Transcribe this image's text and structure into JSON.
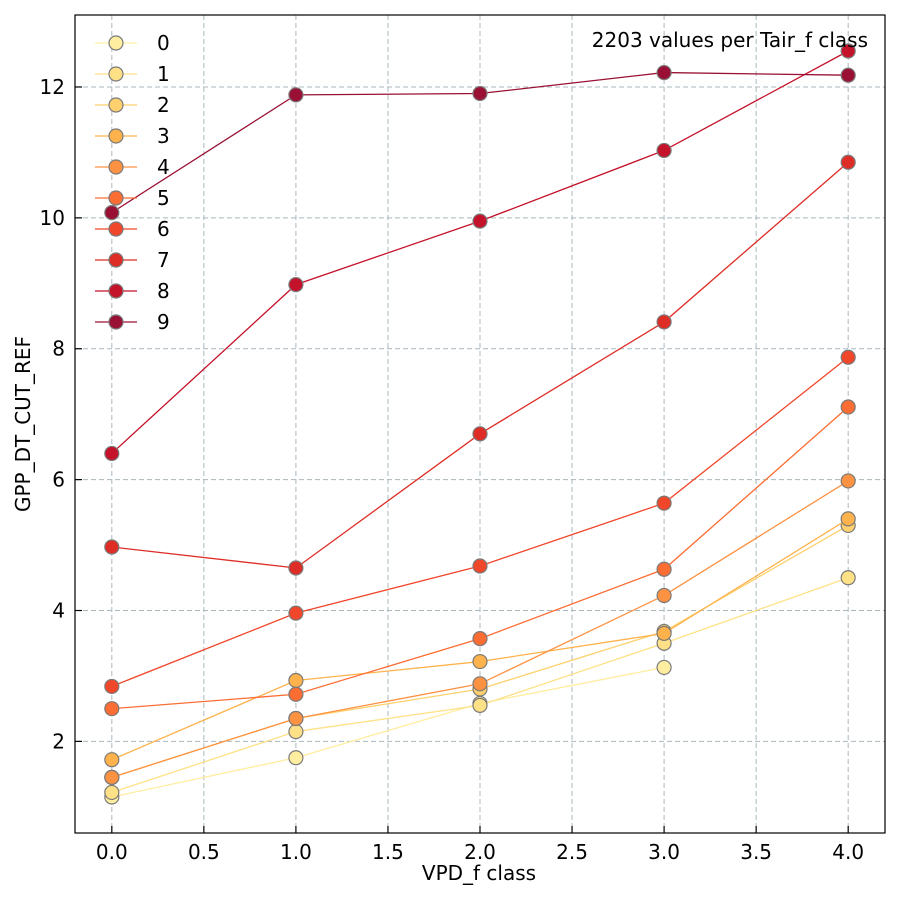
{
  "chart_data": {
    "type": "line",
    "annotation": "2203 values per Tair_f class",
    "xlabel": "VPD_f class",
    "ylabel": "GPP_DT_CUT_REF",
    "xlim": [
      -0.2,
      4.2
    ],
    "ylim": [
      0.6,
      13.1
    ],
    "x_ticks": [
      0.0,
      0.5,
      1.0,
      1.5,
      2.0,
      2.5,
      3.0,
      3.5,
      4.0
    ],
    "x_tick_labels": [
      "0.0",
      "0.5",
      "1.0",
      "1.5",
      "2.0",
      "2.5",
      "3.0",
      "3.5",
      "4.0"
    ],
    "y_ticks": [
      2,
      4,
      6,
      8,
      10,
      12
    ],
    "y_tick_labels": [
      "2",
      "4",
      "6",
      "8",
      "10",
      "12"
    ],
    "grid": true,
    "legend_position": "top-left",
    "x": [
      0,
      1,
      2,
      3,
      4
    ],
    "series": [
      {
        "name": "0",
        "color": "#ffeda0",
        "values": [
          1.15,
          1.75,
          2.58,
          3.13,
          null
        ]
      },
      {
        "name": "1",
        "color": "#fee187",
        "values": [
          1.22,
          2.15,
          2.55,
          3.5,
          4.5
        ]
      },
      {
        "name": "2",
        "color": "#fed16e",
        "values": [
          1.45,
          2.35,
          2.8,
          3.68,
          5.3
        ]
      },
      {
        "name": "3",
        "color": "#feb24c",
        "values": [
          1.72,
          2.93,
          3.22,
          3.65,
          5.4
        ]
      },
      {
        "name": "4",
        "color": "#fd9243",
        "values": [
          1.45,
          2.35,
          2.88,
          4.23,
          5.98
        ]
      },
      {
        "name": "5",
        "color": "#fc6d33",
        "values": [
          2.5,
          2.72,
          3.57,
          4.63,
          7.11
        ]
      },
      {
        "name": "6",
        "color": "#f0462a",
        "values": [
          2.84,
          3.96,
          4.68,
          5.64,
          7.87
        ]
      },
      {
        "name": "7",
        "color": "#de2d26",
        "values": [
          4.97,
          4.65,
          6.7,
          8.41,
          10.85
        ]
      },
      {
        "name": "8",
        "color": "#c4122a",
        "values": [
          6.4,
          8.98,
          9.95,
          11.03,
          12.55
        ]
      },
      {
        "name": "9",
        "color": "#991034",
        "values": [
          10.08,
          11.88,
          11.9,
          12.22,
          12.18
        ]
      }
    ]
  }
}
